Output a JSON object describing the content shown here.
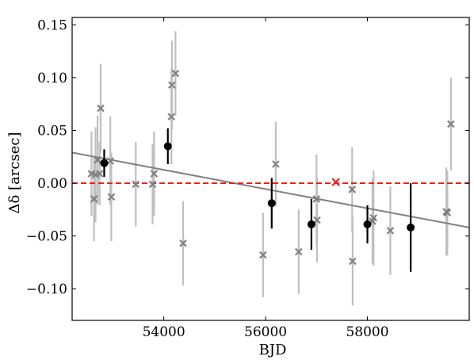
{
  "chart_data": {
    "type": "scatter",
    "title": "",
    "xlabel": "BJD",
    "ylabel": "Δδ [arcsec]",
    "xlim": [
      52200,
      60000
    ],
    "ylim": [
      -0.13,
      0.157
    ],
    "xticks": [
      {
        "value": 54000,
        "label": "54000"
      },
      {
        "value": 56000,
        "label": "56000"
      },
      {
        "value": 58000,
        "label": "58000"
      }
    ],
    "yticks": [
      {
        "value": 0.15,
        "label": "0.15"
      },
      {
        "value": 0.1,
        "label": "0.10"
      },
      {
        "value": 0.05,
        "label": "0.05"
      },
      {
        "value": 0.0,
        "label": "0.00"
      },
      {
        "value": -0.05,
        "label": "−0.05"
      },
      {
        "value": -0.1,
        "label": "−0.10"
      }
    ],
    "grid": false,
    "colors": {
      "individual": "#808080",
      "individual_error": "#bfbfbf",
      "binned": "#000000",
      "fit_line": "#808080",
      "reference_line": "#e8211c",
      "reference_marker": "#e8211c"
    },
    "series": [
      {
        "marker": "x",
        "points": [
          {
            "x": 52580,
            "y": 0.009,
            "err": 0.04
          },
          {
            "x": 52630,
            "y": -0.015,
            "err": 0.04
          },
          {
            "x": 52660,
            "y": 0.008,
            "err": 0.045
          },
          {
            "x": 52700,
            "y": 0.022,
            "err": 0.042
          },
          {
            "x": 52740,
            "y": 0.009,
            "err": 0.03
          },
          {
            "x": 52760,
            "y": 0.071,
            "err": 0.042
          },
          {
            "x": 52950,
            "y": 0.021,
            "err": 0.042
          },
          {
            "x": 52970,
            "y": -0.013,
            "err": 0.042
          },
          {
            "x": 53450,
            "y": -0.001,
            "err": 0.04
          },
          {
            "x": 53780,
            "y": -0.001,
            "err": 0.038
          },
          {
            "x": 53810,
            "y": 0.009,
            "err": 0.04
          },
          {
            "x": 54150,
            "y": 0.063,
            "err": 0.045
          },
          {
            "x": 54160,
            "y": 0.093,
            "err": 0.042
          },
          {
            "x": 54230,
            "y": 0.104,
            "err": 0.04
          },
          {
            "x": 54380,
            "y": -0.057,
            "err": 0.04
          },
          {
            "x": 55950,
            "y": -0.068,
            "err": 0.04
          },
          {
            "x": 56200,
            "y": 0.018,
            "err": 0.04
          },
          {
            "x": 56650,
            "y": -0.065,
            "err": 0.04
          },
          {
            "x": 57000,
            "y": -0.015,
            "err": 0.042
          },
          {
            "x": 57010,
            "y": -0.035,
            "err": 0.04
          },
          {
            "x": 57700,
            "y": -0.006,
            "err": 0.04
          },
          {
            "x": 57710,
            "y": -0.074,
            "err": 0.042
          },
          {
            "x": 58100,
            "y": -0.036,
            "err": 0.04
          },
          {
            "x": 58120,
            "y": -0.033,
            "err": 0.045
          },
          {
            "x": 58450,
            "y": -0.045,
            "err": 0.042
          },
          {
            "x": 59550,
            "y": -0.027,
            "err": 0.042
          },
          {
            "x": 59570,
            "y": -0.028,
            "err": 0.04
          },
          {
            "x": 59640,
            "y": 0.056,
            "err": 0.044
          }
        ]
      },
      {
        "marker": "filled-circle",
        "points": [
          {
            "x": 52830,
            "y": 0.019,
            "err": 0.013
          },
          {
            "x": 54080,
            "y": 0.035,
            "err": 0.017
          },
          {
            "x": 56120,
            "y": -0.019,
            "err": 0.024
          },
          {
            "x": 56900,
            "y": -0.039,
            "err": 0.024
          },
          {
            "x": 58000,
            "y": -0.039,
            "err": 0.018
          },
          {
            "x": 58850,
            "y": -0.042,
            "err": 0.042
          }
        ]
      },
      {
        "marker": "x",
        "points": [
          {
            "x": 57380,
            "y": 0.001,
            "err": 0
          }
        ]
      }
    ],
    "fit_line": {
      "x": [
        52200,
        60000
      ],
      "y": [
        0.029,
        -0.042
      ]
    },
    "reference_line": {
      "y": 0.0,
      "style": "dashed"
    }
  }
}
